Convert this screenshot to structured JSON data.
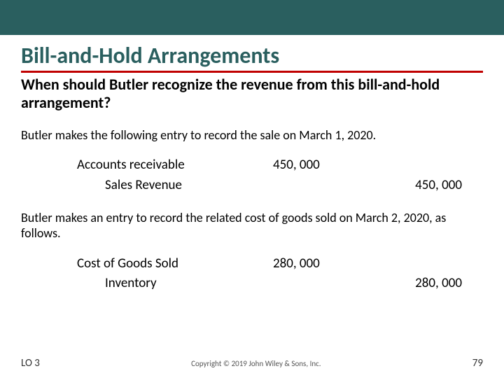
{
  "colors": {
    "header_bg": "#2a5f5f",
    "title_color": "#2a5f5f",
    "title_underline": "#c00000",
    "text_color": "#000000",
    "footer_color": "#555555",
    "background": "#ffffff"
  },
  "title": "Bill-and-Hold Arrangements",
  "subtitle": "When should Butler recognize the revenue from this bill-and-hold arrangement?",
  "para1": "Butler makes the following entry to record the sale on March 1, 2020.",
  "journal1": {
    "rows": [
      {
        "account": "Accounts receivable",
        "debit": "450, 000",
        "credit": ""
      },
      {
        "account": "Sales Revenue",
        "debit": "",
        "credit": "450, 000"
      }
    ]
  },
  "para2": "Butler makes an entry to record the related cost of goods sold on March 2, 2020, as follows.",
  "journal2": {
    "rows": [
      {
        "account": "Cost of Goods Sold",
        "debit": "280, 000",
        "credit": ""
      },
      {
        "account": "Inventory",
        "debit": "",
        "credit": "280, 000"
      }
    ]
  },
  "footer": {
    "lo": "LO 3",
    "copyright": "Copyright © 2019 John Wiley & Sons, Inc.",
    "page": "79"
  }
}
